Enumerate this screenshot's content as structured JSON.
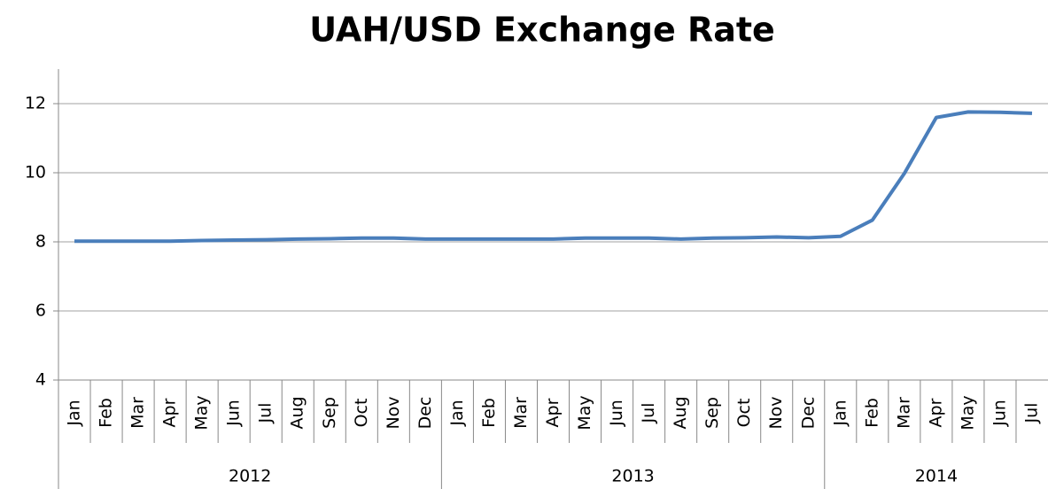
{
  "chart_data": {
    "type": "line",
    "title": "UAH/USD Exchange Rate",
    "category_groups": [
      {
        "name": "2012",
        "categories": [
          "Jan",
          "Feb",
          "Mar",
          "Apr",
          "May",
          "Jun",
          "Jul",
          "Aug",
          "Sep",
          "Oct",
          "Nov",
          "Dec"
        ]
      },
      {
        "name": "2013",
        "categories": [
          "Jan",
          "Feb",
          "Mar",
          "Apr",
          "May",
          "Jun",
          "Jul",
          "Aug",
          "Sep",
          "Oct",
          "Nov",
          "Dec"
        ]
      },
      {
        "name": "2014",
        "categories": [
          "Jan",
          "Feb",
          "Mar",
          "Apr",
          "May",
          "Jun",
          "Jul"
        ]
      }
    ],
    "series": [
      {
        "color": "#4a7ebb",
        "values": [
          8.02,
          8.02,
          8.02,
          8.02,
          8.04,
          8.05,
          8.06,
          8.08,
          8.09,
          8.11,
          8.11,
          8.08,
          8.08,
          8.08,
          8.08,
          8.08,
          8.11,
          8.11,
          8.11,
          8.08,
          8.11,
          8.12,
          8.14,
          8.12,
          8.16,
          8.63,
          9.98,
          11.6,
          11.76,
          11.75,
          11.72
        ]
      }
    ],
    "ylim": [
      4,
      13
    ],
    "yticks": [
      4,
      6,
      8,
      10,
      12
    ],
    "grid": true
  }
}
